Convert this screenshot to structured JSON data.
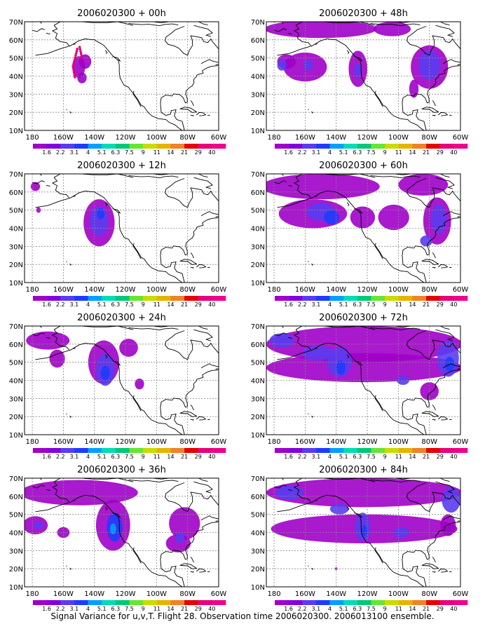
{
  "chart_data": {
    "type": "heatmap",
    "caption": "Signal Variance for u,v,T. Flight 28. Observation time 2006020300. 2006013100 ensemble.",
    "lon_ticks": [
      "180",
      "160W",
      "140W",
      "120W",
      "100W",
      "80W",
      "60W"
    ],
    "lat_ticks": [
      "10N",
      "20N",
      "30N",
      "40N",
      "50N",
      "60N",
      "70N"
    ],
    "lon_range": [
      -185,
      -60
    ],
    "lat_range": [
      10,
      70
    ],
    "grid": true,
    "colorbar": {
      "labels": [
        "1.6",
        "2.2",
        "3.1",
        "4",
        "5.1",
        "6.3",
        "7.5",
        "9",
        "11",
        "14",
        "21",
        "29",
        "40"
      ],
      "colors": [
        "#a000c8",
        "#8200dc",
        "#5a3cf0",
        "#1e3cff",
        "#00a0ff",
        "#00dcb4",
        "#00c878",
        "#64e632",
        "#c8dc00",
        "#e6b400",
        "#f08228",
        "#e60000",
        "#e6007a",
        "#f0008c"
      ]
    },
    "panels": [
      {
        "title": "2006020300 + 00h",
        "blobs": [
          {
            "lon": -150,
            "lat": 45,
            "rx": 4,
            "ry": 6,
            "level": 0
          },
          {
            "lon": -146,
            "lat": 48,
            "rx": 4,
            "ry": 4,
            "level": 0
          },
          {
            "lon": -148,
            "lat": 39,
            "rx": 3,
            "ry": 3,
            "level": 0
          }
        ],
        "track": true
      },
      {
        "title": "2006020300 + 12h",
        "blobs": [
          {
            "lon": -137,
            "lat": 43,
            "rx": 10,
            "ry": 13,
            "level": 0
          },
          {
            "lon": -137,
            "lat": 44,
            "rx": 6,
            "ry": 8,
            "level": 2
          },
          {
            "lon": -136,
            "lat": 48,
            "rx": 2.5,
            "ry": 3,
            "level": 3
          },
          {
            "lon": -178,
            "lat": 63,
            "rx": 3,
            "ry": 2.5,
            "level": 0
          },
          {
            "lon": -176,
            "lat": 50,
            "rx": 1.5,
            "ry": 1.5,
            "level": 0
          }
        ]
      },
      {
        "title": "2006020300 + 24h",
        "blobs": [
          {
            "lon": -170,
            "lat": 62,
            "rx": 14,
            "ry": 5,
            "level": 0
          },
          {
            "lon": -164,
            "lat": 52,
            "rx": 5,
            "ry": 5,
            "level": 0
          },
          {
            "lon": -134,
            "lat": 50,
            "rx": 10,
            "ry": 12,
            "level": 0
          },
          {
            "lon": -133,
            "lat": 46,
            "rx": 6,
            "ry": 9,
            "level": 2
          },
          {
            "lon": -133,
            "lat": 44,
            "rx": 3,
            "ry": 4,
            "level": 3
          },
          {
            "lon": -118,
            "lat": 58,
            "rx": 6,
            "ry": 5,
            "level": 0
          },
          {
            "lon": -111,
            "lat": 38,
            "rx": 3,
            "ry": 3,
            "level": 0
          }
        ]
      },
      {
        "title": "2006020300 + 36h",
        "blobs": [
          {
            "lon": -150,
            "lat": 62,
            "rx": 38,
            "ry": 7,
            "level": 0
          },
          {
            "lon": -178,
            "lat": 44,
            "rx": 8,
            "ry": 5,
            "level": 0
          },
          {
            "lon": -176,
            "lat": 44,
            "rx": 3,
            "ry": 2,
            "level": 2
          },
          {
            "lon": -160,
            "lat": 40,
            "rx": 4,
            "ry": 3,
            "level": 0
          },
          {
            "lon": -128,
            "lat": 44,
            "rx": 11,
            "ry": 14,
            "level": 0
          },
          {
            "lon": -127,
            "lat": 43,
            "rx": 5,
            "ry": 8,
            "level": 3
          },
          {
            "lon": -128,
            "lat": 42,
            "rx": 2,
            "ry": 3,
            "level": 4
          },
          {
            "lon": -82,
            "lat": 45,
            "rx": 10,
            "ry": 9,
            "level": 0
          },
          {
            "lon": -86,
            "lat": 34,
            "rx": 8,
            "ry": 5,
            "level": 0
          },
          {
            "lon": -85,
            "lat": 37,
            "rx": 3,
            "ry": 3,
            "level": 2
          }
        ]
      },
      {
        "title": "2006020300 + 48h",
        "blobs": [
          {
            "lon": -150,
            "lat": 66,
            "rx": 36,
            "ry": 5,
            "level": 0
          },
          {
            "lon": -160,
            "lat": 45,
            "rx": 14,
            "ry": 8,
            "level": 0
          },
          {
            "lon": -172,
            "lat": 48,
            "rx": 6,
            "ry": 4,
            "level": 0
          },
          {
            "lon": -175,
            "lat": 46,
            "rx": 3,
            "ry": 3,
            "level": 2
          },
          {
            "lon": -158,
            "lat": 46,
            "rx": 3,
            "ry": 3,
            "level": 2
          },
          {
            "lon": -126,
            "lat": 44,
            "rx": 6,
            "ry": 10,
            "level": 0
          },
          {
            "lon": -126,
            "lat": 43,
            "rx": 2.5,
            "ry": 4,
            "level": 2
          },
          {
            "lon": -104,
            "lat": 66,
            "rx": 12,
            "ry": 4,
            "level": 0
          },
          {
            "lon": -80,
            "lat": 45,
            "rx": 12,
            "ry": 12,
            "level": 0
          },
          {
            "lon": -80,
            "lat": 46,
            "rx": 7,
            "ry": 8,
            "level": 2
          },
          {
            "lon": -90,
            "lat": 33,
            "rx": 3,
            "ry": 5,
            "level": 0
          }
        ]
      },
      {
        "title": "2006020300 + 60h",
        "blobs": [
          {
            "lon": -150,
            "lat": 63,
            "rx": 38,
            "ry": 7,
            "level": 0
          },
          {
            "lon": -155,
            "lat": 48,
            "rx": 22,
            "ry": 8,
            "level": 0
          },
          {
            "lon": -150,
            "lat": 49,
            "rx": 9,
            "ry": 5,
            "level": 2
          },
          {
            "lon": -143,
            "lat": 46,
            "rx": 5,
            "ry": 4,
            "level": 3
          },
          {
            "lon": -123,
            "lat": 46,
            "rx": 8,
            "ry": 6,
            "level": 0
          },
          {
            "lon": -103,
            "lat": 46,
            "rx": 10,
            "ry": 7,
            "level": 0
          },
          {
            "lon": -84,
            "lat": 64,
            "rx": 16,
            "ry": 6,
            "level": 0
          },
          {
            "lon": -75,
            "lat": 44,
            "rx": 9,
            "ry": 13,
            "level": 0
          },
          {
            "lon": -74,
            "lat": 45,
            "rx": 5,
            "ry": 8,
            "level": 2
          },
          {
            "lon": -82,
            "lat": 33,
            "rx": 4,
            "ry": 3,
            "level": 2
          }
        ]
      },
      {
        "title": "2006020300 + 72h",
        "blobs": [
          {
            "lon": -122,
            "lat": 60,
            "rx": 63,
            "ry": 10,
            "level": 0
          },
          {
            "lon": -122,
            "lat": 47,
            "rx": 63,
            "ry": 8,
            "level": 0
          },
          {
            "lon": -175,
            "lat": 62,
            "rx": 8,
            "ry": 4,
            "level": 2
          },
          {
            "lon": -152,
            "lat": 55,
            "rx": 10,
            "ry": 4,
            "level": 2
          },
          {
            "lon": -138,
            "lat": 50,
            "rx": 8,
            "ry": 8,
            "level": 2
          },
          {
            "lon": -137,
            "lat": 47,
            "rx": 3,
            "ry": 4,
            "level": 3
          },
          {
            "lon": -97,
            "lat": 40,
            "rx": 4,
            "ry": 2.5,
            "level": 2
          },
          {
            "lon": -68,
            "lat": 52,
            "rx": 7,
            "ry": 10,
            "level": 2
          },
          {
            "lon": -67,
            "lat": 49,
            "rx": 3,
            "ry": 4,
            "level": 3
          },
          {
            "lon": -80,
            "lat": 34,
            "rx": 6,
            "ry": 5,
            "level": 0
          }
        ]
      },
      {
        "title": "2006020300 + 84h",
        "blobs": [
          {
            "lon": -122,
            "lat": 62,
            "rx": 63,
            "ry": 8,
            "level": 0
          },
          {
            "lon": -122,
            "lat": 42,
            "rx": 60,
            "ry": 8,
            "level": 0
          },
          {
            "lon": -170,
            "lat": 62,
            "rx": 9,
            "ry": 4,
            "level": 2
          },
          {
            "lon": -138,
            "lat": 53,
            "rx": 6,
            "ry": 3,
            "level": 2
          },
          {
            "lon": -123,
            "lat": 43,
            "rx": 5,
            "ry": 8,
            "level": 2
          },
          {
            "lon": -122,
            "lat": 41,
            "rx": 2,
            "ry": 3,
            "level": 3
          },
          {
            "lon": -98,
            "lat": 40,
            "rx": 5,
            "ry": 3,
            "level": 2
          },
          {
            "lon": -66,
            "lat": 58,
            "rx": 6,
            "ry": 7,
            "level": 2
          },
          {
            "lon": -68,
            "lat": 44,
            "rx": 5,
            "ry": 6,
            "level": 0
          },
          {
            "lon": -140,
            "lat": 20,
            "rx": 0.8,
            "ry": 0.8,
            "level": 0
          }
        ]
      }
    ]
  }
}
